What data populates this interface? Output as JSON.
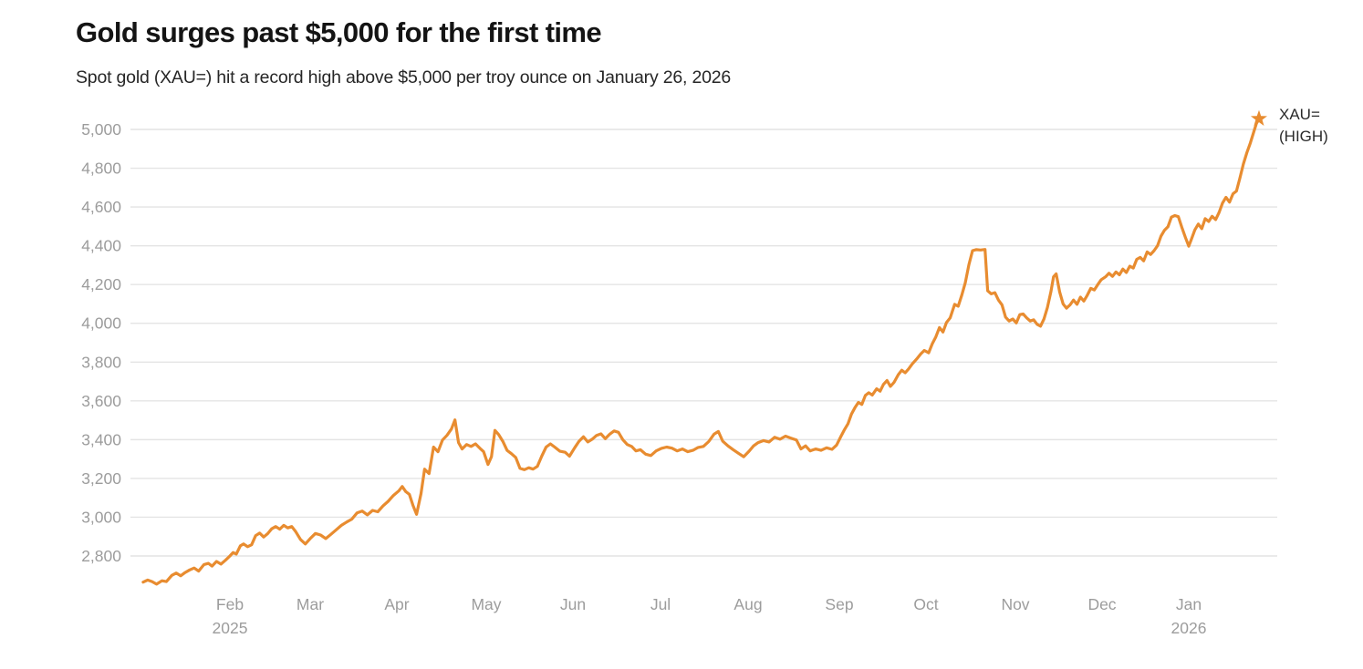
{
  "header": {
    "title": "Gold surges past $5,000 for the first time",
    "subtitle": "Spot gold (XAU=) hit a record high above $5,000 per troy ounce on January 26, 2026"
  },
  "chart_data": {
    "type": "line",
    "title": "Gold surges past $5,000 for the first time",
    "subtitle": "Spot gold (XAU=) hit a record high above $5,000 per troy ounce on January 26, 2026",
    "series_name": "XAU=",
    "end_label": {
      "line1": "XAU=",
      "line2": "(HIGH)"
    },
    "colors": {
      "line": "#E88C30",
      "star": "#E88C30",
      "grid": "#e4e4e4",
      "axis_text": "#9c9c9c",
      "title_text": "#141414",
      "subtitle_text": "#262626",
      "end_label_text": "#2a2a2a"
    },
    "ylabel": "",
    "xlabel": "",
    "ylim": [
      2640,
      5070
    ],
    "grid": "horizontal",
    "legend_position": "end-of-line",
    "y_ticks": [
      {
        "v": 5000,
        "label": "5,000"
      },
      {
        "v": 4800,
        "label": "4,800"
      },
      {
        "v": 4600,
        "label": "4,600"
      },
      {
        "v": 4400,
        "label": "4,400"
      },
      {
        "v": 4200,
        "label": "4,200"
      },
      {
        "v": 4000,
        "label": "4,000"
      },
      {
        "v": 3800,
        "label": "3,800"
      },
      {
        "v": 3600,
        "label": "3,600"
      },
      {
        "v": 3400,
        "label": "3,400"
      },
      {
        "v": 3200,
        "label": "3,200"
      },
      {
        "v": 3000,
        "label": "3,000"
      },
      {
        "v": 2800,
        "label": "2,800"
      }
    ],
    "x_ticks": [
      {
        "m": 1,
        "label": "Feb",
        "year": "2025"
      },
      {
        "m": 2,
        "label": "Mar",
        "year": ""
      },
      {
        "m": 3,
        "label": "Apr",
        "year": ""
      },
      {
        "m": 4,
        "label": "May",
        "year": ""
      },
      {
        "m": 5,
        "label": "Jun",
        "year": ""
      },
      {
        "m": 6,
        "label": "Jul",
        "year": ""
      },
      {
        "m": 7,
        "label": "Aug",
        "year": ""
      },
      {
        "m": 8,
        "label": "Sep",
        "year": ""
      },
      {
        "m": 9,
        "label": "Oct",
        "year": ""
      },
      {
        "m": 10,
        "label": "Nov",
        "year": ""
      },
      {
        "m": 11,
        "label": "Dec",
        "year": ""
      },
      {
        "m": 12,
        "label": "Jan",
        "year": "2026"
      }
    ],
    "x_unit": "months_since_2025-01-01",
    "record_high": {
      "x": 12.81,
      "value": 5055,
      "date": "January 26, 2026"
    },
    "points": [
      [
        0.03,
        2665
      ],
      [
        0.08,
        2676
      ],
      [
        0.13,
        2668
      ],
      [
        0.18,
        2655
      ],
      [
        0.24,
        2672
      ],
      [
        0.29,
        2668
      ],
      [
        0.35,
        2700
      ],
      [
        0.4,
        2712
      ],
      [
        0.45,
        2698
      ],
      [
        0.5,
        2715
      ],
      [
        0.55,
        2728
      ],
      [
        0.6,
        2738
      ],
      [
        0.65,
        2722
      ],
      [
        0.71,
        2756
      ],
      [
        0.76,
        2762
      ],
      [
        0.8,
        2748
      ],
      [
        0.85,
        2772
      ],
      [
        0.9,
        2758
      ],
      [
        0.95,
        2778
      ],
      [
        1.0,
        2800
      ],
      [
        1.04,
        2818
      ],
      [
        1.08,
        2810
      ],
      [
        1.13,
        2852
      ],
      [
        1.17,
        2862
      ],
      [
        1.22,
        2848
      ],
      [
        1.27,
        2858
      ],
      [
        1.32,
        2905
      ],
      [
        1.37,
        2918
      ],
      [
        1.42,
        2898
      ],
      [
        1.47,
        2915
      ],
      [
        1.52,
        2940
      ],
      [
        1.57,
        2952
      ],
      [
        1.62,
        2938
      ],
      [
        1.67,
        2958
      ],
      [
        1.72,
        2945
      ],
      [
        1.77,
        2952
      ],
      [
        1.82,
        2925
      ],
      [
        1.88,
        2885
      ],
      [
        1.94,
        2862
      ],
      [
        2.0,
        2890
      ],
      [
        2.06,
        2916
      ],
      [
        2.12,
        2908
      ],
      [
        2.18,
        2890
      ],
      [
        2.24,
        2912
      ],
      [
        2.3,
        2935
      ],
      [
        2.36,
        2958
      ],
      [
        2.42,
        2975
      ],
      [
        2.48,
        2990
      ],
      [
        2.54,
        3022
      ],
      [
        2.6,
        3032
      ],
      [
        2.66,
        3012
      ],
      [
        2.72,
        3035
      ],
      [
        2.78,
        3028
      ],
      [
        2.84,
        3058
      ],
      [
        2.9,
        3082
      ],
      [
        2.96,
        3112
      ],
      [
        3.02,
        3135
      ],
      [
        3.06,
        3158
      ],
      [
        3.1,
        3132
      ],
      [
        3.14,
        3118
      ],
      [
        3.18,
        3062
      ],
      [
        3.22,
        3015
      ],
      [
        3.27,
        3122
      ],
      [
        3.31,
        3248
      ],
      [
        3.36,
        3225
      ],
      [
        3.41,
        3362
      ],
      [
        3.46,
        3338
      ],
      [
        3.51,
        3398
      ],
      [
        3.56,
        3422
      ],
      [
        3.61,
        3455
      ],
      [
        3.65,
        3502
      ],
      [
        3.69,
        3385
      ],
      [
        3.73,
        3352
      ],
      [
        3.78,
        3375
      ],
      [
        3.83,
        3365
      ],
      [
        3.88,
        3378
      ],
      [
        3.93,
        3355
      ],
      [
        3.97,
        3338
      ],
      [
        4.02,
        3272
      ],
      [
        4.06,
        3312
      ],
      [
        4.1,
        3448
      ],
      [
        4.14,
        3428
      ],
      [
        4.19,
        3392
      ],
      [
        4.24,
        3345
      ],
      [
        4.29,
        3328
      ],
      [
        4.34,
        3308
      ],
      [
        4.39,
        3252
      ],
      [
        4.44,
        3245
      ],
      [
        4.49,
        3255
      ],
      [
        4.54,
        3248
      ],
      [
        4.59,
        3262
      ],
      [
        4.64,
        3315
      ],
      [
        4.69,
        3362
      ],
      [
        4.74,
        3378
      ],
      [
        4.79,
        3362
      ],
      [
        4.85,
        3340
      ],
      [
        4.91,
        3335
      ],
      [
        4.96,
        3315
      ],
      [
        5.02,
        3358
      ],
      [
        5.07,
        3392
      ],
      [
        5.12,
        3415
      ],
      [
        5.17,
        3388
      ],
      [
        5.22,
        3402
      ],
      [
        5.27,
        3422
      ],
      [
        5.32,
        3430
      ],
      [
        5.37,
        3405
      ],
      [
        5.42,
        3428
      ],
      [
        5.47,
        3445
      ],
      [
        5.52,
        3438
      ],
      [
        5.57,
        3400
      ],
      [
        5.62,
        3375
      ],
      [
        5.67,
        3365
      ],
      [
        5.72,
        3342
      ],
      [
        5.77,
        3348
      ],
      [
        5.83,
        3325
      ],
      [
        5.89,
        3318
      ],
      [
        5.95,
        3342
      ],
      [
        6.01,
        3355
      ],
      [
        6.07,
        3362
      ],
      [
        6.13,
        3356
      ],
      [
        6.19,
        3342
      ],
      [
        6.25,
        3352
      ],
      [
        6.31,
        3338
      ],
      [
        6.37,
        3345
      ],
      [
        6.43,
        3360
      ],
      [
        6.49,
        3365
      ],
      [
        6.55,
        3390
      ],
      [
        6.61,
        3428
      ],
      [
        6.66,
        3442
      ],
      [
        6.71,
        3392
      ],
      [
        6.77,
        3368
      ],
      [
        6.83,
        3348
      ],
      [
        6.89,
        3330
      ],
      [
        6.95,
        3312
      ],
      [
        7.01,
        3340
      ],
      [
        7.06,
        3368
      ],
      [
        7.11,
        3385
      ],
      [
        7.17,
        3395
      ],
      [
        7.23,
        3388
      ],
      [
        7.29,
        3412
      ],
      [
        7.35,
        3402
      ],
      [
        7.41,
        3418
      ],
      [
        7.47,
        3408
      ],
      [
        7.53,
        3398
      ],
      [
        7.58,
        3352
      ],
      [
        7.63,
        3368
      ],
      [
        7.68,
        3342
      ],
      [
        7.74,
        3352
      ],
      [
        7.8,
        3345
      ],
      [
        7.86,
        3358
      ],
      [
        7.92,
        3350
      ],
      [
        7.97,
        3372
      ],
      [
        8.02,
        3418
      ],
      [
        8.06,
        3452
      ],
      [
        8.1,
        3482
      ],
      [
        8.14,
        3532
      ],
      [
        8.18,
        3565
      ],
      [
        8.22,
        3592
      ],
      [
        8.26,
        3582
      ],
      [
        8.3,
        3628
      ],
      [
        8.34,
        3642
      ],
      [
        8.38,
        3630
      ],
      [
        8.43,
        3662
      ],
      [
        8.47,
        3650
      ],
      [
        8.51,
        3685
      ],
      [
        8.55,
        3705
      ],
      [
        8.59,
        3675
      ],
      [
        8.63,
        3695
      ],
      [
        8.68,
        3735
      ],
      [
        8.72,
        3758
      ],
      [
        8.76,
        3745
      ],
      [
        8.8,
        3765
      ],
      [
        8.84,
        3790
      ],
      [
        8.89,
        3815
      ],
      [
        8.94,
        3842
      ],
      [
        8.98,
        3860
      ],
      [
        9.03,
        3848
      ],
      [
        9.07,
        3895
      ],
      [
        9.11,
        3930
      ],
      [
        9.15,
        3978
      ],
      [
        9.19,
        3955
      ],
      [
        9.23,
        4005
      ],
      [
        9.27,
        4028
      ],
      [
        9.32,
        4098
      ],
      [
        9.36,
        4088
      ],
      [
        9.4,
        4145
      ],
      [
        9.44,
        4210
      ],
      [
        9.48,
        4302
      ],
      [
        9.52,
        4375
      ],
      [
        9.56,
        4380
      ],
      [
        9.61,
        4378
      ],
      [
        9.66,
        4381
      ],
      [
        9.69,
        4168
      ],
      [
        9.73,
        4152
      ],
      [
        9.77,
        4158
      ],
      [
        9.81,
        4120
      ],
      [
        9.85,
        4095
      ],
      [
        9.89,
        4032
      ],
      [
        9.93,
        4012
      ],
      [
        9.97,
        4022
      ],
      [
        10.01,
        4002
      ],
      [
        10.05,
        4045
      ],
      [
        10.09,
        4048
      ],
      [
        10.13,
        4028
      ],
      [
        10.17,
        4012
      ],
      [
        10.21,
        4018
      ],
      [
        10.25,
        3995
      ],
      [
        10.29,
        3985
      ],
      [
        10.33,
        4022
      ],
      [
        10.37,
        4082
      ],
      [
        10.41,
        4165
      ],
      [
        10.44,
        4240
      ],
      [
        10.47,
        4255
      ],
      [
        10.51,
        4162
      ],
      [
        10.55,
        4100
      ],
      [
        10.59,
        4078
      ],
      [
        10.63,
        4095
      ],
      [
        10.67,
        4120
      ],
      [
        10.71,
        4098
      ],
      [
        10.75,
        4135
      ],
      [
        10.79,
        4115
      ],
      [
        10.83,
        4145
      ],
      [
        10.87,
        4180
      ],
      [
        10.91,
        4172
      ],
      [
        10.95,
        4200
      ],
      [
        10.99,
        4225
      ],
      [
        11.04,
        4240
      ],
      [
        11.08,
        4258
      ],
      [
        11.12,
        4242
      ],
      [
        11.16,
        4265
      ],
      [
        11.2,
        4250
      ],
      [
        11.24,
        4280
      ],
      [
        11.28,
        4262
      ],
      [
        11.32,
        4295
      ],
      [
        11.36,
        4285
      ],
      [
        11.4,
        4330
      ],
      [
        11.44,
        4340
      ],
      [
        11.48,
        4322
      ],
      [
        11.52,
        4368
      ],
      [
        11.56,
        4355
      ],
      [
        11.6,
        4375
      ],
      [
        11.64,
        4400
      ],
      [
        11.68,
        4450
      ],
      [
        11.72,
        4480
      ],
      [
        11.76,
        4498
      ],
      [
        11.8,
        4548
      ],
      [
        11.84,
        4556
      ],
      [
        11.88,
        4550
      ],
      [
        11.92,
        4495
      ],
      [
        11.96,
        4445
      ],
      [
        12.0,
        4398
      ],
      [
        12.03,
        4432
      ],
      [
        12.07,
        4482
      ],
      [
        12.11,
        4512
      ],
      [
        12.15,
        4488
      ],
      [
        12.19,
        4540
      ],
      [
        12.23,
        4525
      ],
      [
        12.27,
        4552
      ],
      [
        12.31,
        4535
      ],
      [
        12.35,
        4572
      ],
      [
        12.39,
        4620
      ],
      [
        12.43,
        4650
      ],
      [
        12.47,
        4625
      ],
      [
        12.51,
        4668
      ],
      [
        12.55,
        4682
      ],
      [
        12.59,
        4748
      ],
      [
        12.63,
        4822
      ],
      [
        12.67,
        4880
      ],
      [
        12.71,
        4930
      ],
      [
        12.75,
        4988
      ],
      [
        12.78,
        5030
      ],
      [
        12.81,
        5055
      ]
    ]
  }
}
